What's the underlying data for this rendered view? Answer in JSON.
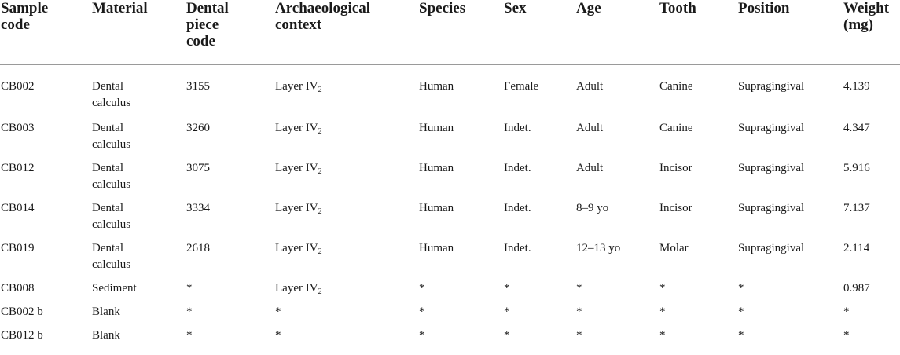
{
  "table": {
    "headers": [
      "Sample code",
      "Material",
      "Dental piece code",
      "Archaeological context",
      "Species",
      "Sex",
      "Age",
      "Tooth",
      "Position",
      "Weight (mg)"
    ],
    "header_lines": [
      [
        "Sample",
        "code"
      ],
      [
        "Material"
      ],
      [
        "Dental",
        "piece",
        "code"
      ],
      [
        "Archaeological",
        "context"
      ],
      [
        "Species"
      ],
      [
        "Sex"
      ],
      [
        "Age"
      ],
      [
        "Tooth"
      ],
      [
        "Position"
      ],
      [
        "Weight",
        "(mg)"
      ]
    ],
    "layer_sub": "2",
    "rows": [
      {
        "sample_code": "CB002",
        "material": "Dental calculus",
        "dental_piece_code": "3155",
        "context": "Layer IV",
        "context_sub": "2",
        "species": "Human",
        "sex": "Female",
        "age": "Adult",
        "tooth": "Canine",
        "position": "Supragingival",
        "weight": "4.139"
      },
      {
        "sample_code": "CB003",
        "material": "Dental calculus",
        "dental_piece_code": "3260",
        "context": "Layer IV",
        "context_sub": "2",
        "species": "Human",
        "sex": "Indet.",
        "age": "Adult",
        "tooth": "Canine",
        "position": "Supragingival",
        "weight": "4.347"
      },
      {
        "sample_code": "CB012",
        "material": "Dental calculus",
        "dental_piece_code": "3075",
        "context": "Layer IV",
        "context_sub": "2",
        "species": "Human",
        "sex": "Indet.",
        "age": "Adult",
        "tooth": "Incisor",
        "position": "Supragingival",
        "weight": "5.916"
      },
      {
        "sample_code": "CB014",
        "material": "Dental calculus",
        "dental_piece_code": "3334",
        "context": "Layer IV",
        "context_sub": "2",
        "species": "Human",
        "sex": "Indet.",
        "age": "8–9 yo",
        "tooth": "Incisor",
        "position": "Supragingival",
        "weight": "7.137"
      },
      {
        "sample_code": "CB019",
        "material": "Dental calculus",
        "dental_piece_code": "2618",
        "context": "Layer IV",
        "context_sub": "2",
        "species": "Human",
        "sex": "Indet.",
        "age": "12–13 yo",
        "tooth": "Molar",
        "position": "Supragingival",
        "weight": "2.114"
      },
      {
        "sample_code": "CB008",
        "material": "Sediment",
        "dental_piece_code": "*",
        "context": "Layer IV",
        "context_sub": "2",
        "species": "*",
        "sex": "*",
        "age": "*",
        "tooth": "*",
        "position": "*",
        "weight": "0.987"
      },
      {
        "sample_code": "CB002 b",
        "material": "Blank",
        "dental_piece_code": "*",
        "context": "*",
        "context_sub": "",
        "species": "*",
        "sex": "*",
        "age": "*",
        "tooth": "*",
        "position": "*",
        "weight": "*"
      },
      {
        "sample_code": "CB012 b",
        "material": "Blank",
        "dental_piece_code": "*",
        "context": "*",
        "context_sub": "",
        "species": "*",
        "sex": "*",
        "age": "*",
        "tooth": "*",
        "position": "*",
        "weight": "*"
      }
    ]
  }
}
